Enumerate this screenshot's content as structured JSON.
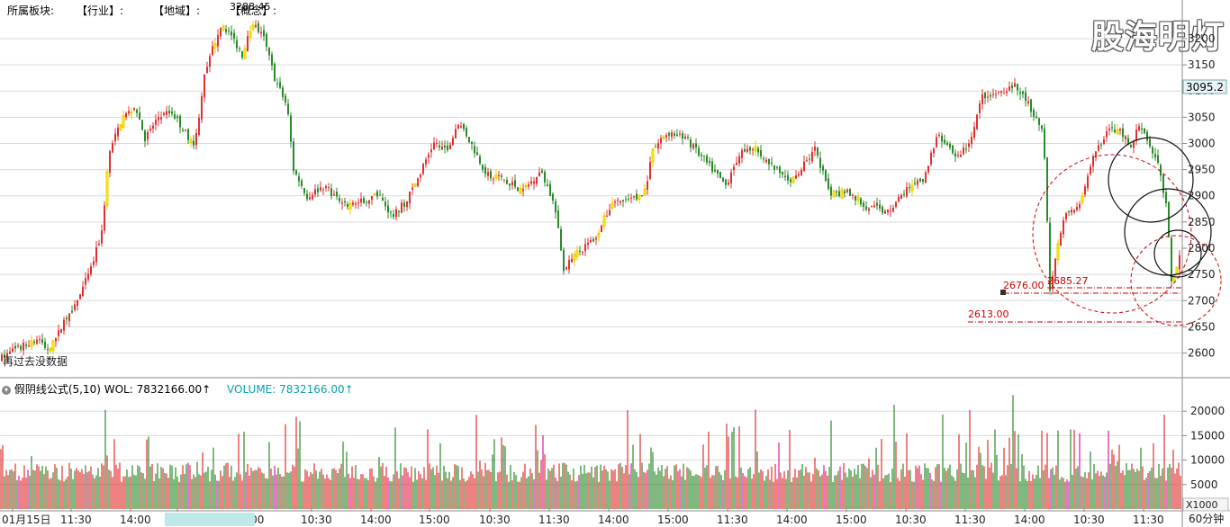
{
  "header": {
    "sector_label": "所属板块:",
    "industry_label": "【行业】:",
    "region_label": "【地域】:",
    "concept_label": "【概念】:",
    "concept_value": "3288.45"
  },
  "watermark": "股海明灯",
  "price_tag": "3095.2",
  "bottom_left_note": "再过去没数据",
  "chart_data": [
    {
      "type": "candlestick",
      "title": "",
      "ylabel": "",
      "ylim": [
        2570,
        3260
      ],
      "yticks": [
        2600,
        2650,
        2700,
        2750,
        2800,
        2850,
        2900,
        2950,
        3000,
        3050,
        3100,
        3150,
        3200
      ],
      "xticks": [
        "01月15日",
        "11:30",
        "14:00",
        "19/03/18/— 15:00",
        "10:30",
        "14:00",
        "15:00",
        "10:30",
        "11:30",
        "14:00",
        "15:00",
        "11:30",
        "14:00",
        "15:00",
        "10:30",
        "11:30",
        "14:00",
        "10:30",
        "11:30"
      ],
      "path_points": [
        [
          0,
          2590
        ],
        [
          20,
          2610
        ],
        [
          40,
          2625
        ],
        [
          55,
          2605
        ],
        [
          70,
          2660
        ],
        [
          85,
          2700
        ],
        [
          100,
          2760
        ],
        [
          112,
          2830
        ],
        [
          120,
          2980
        ],
        [
          135,
          3050
        ],
        [
          150,
          3070
        ],
        [
          160,
          3010
        ],
        [
          175,
          3050
        ],
        [
          190,
          3060
        ],
        [
          205,
          3020
        ],
        [
          215,
          2990
        ],
        [
          225,
          3120
        ],
        [
          235,
          3180
        ],
        [
          245,
          3230
        ],
        [
          258,
          3200
        ],
        [
          268,
          3170
        ],
        [
          280,
          3230
        ],
        [
          292,
          3200
        ],
        [
          305,
          3120
        ],
        [
          318,
          3070
        ],
        [
          325,
          2950
        ],
        [
          340,
          2900
        ],
        [
          360,
          2920
        ],
        [
          380,
          2880
        ],
        [
          400,
          2890
        ],
        [
          420,
          2900
        ],
        [
          435,
          2860
        ],
        [
          450,
          2890
        ],
        [
          465,
          2940
        ],
        [
          480,
          3000
        ],
        [
          495,
          2990
        ],
        [
          510,
          3040
        ],
        [
          525,
          2990
        ],
        [
          540,
          2940
        ],
        [
          560,
          2930
        ],
        [
          580,
          2910
        ],
        [
          600,
          2950
        ],
        [
          615,
          2880
        ],
        [
          625,
          2760
        ],
        [
          640,
          2790
        ],
        [
          660,
          2820
        ],
        [
          680,
          2890
        ],
        [
          700,
          2890
        ],
        [
          715,
          2910
        ],
        [
          725,
          2990
        ],
        [
          740,
          3020
        ],
        [
          755,
          3020
        ],
        [
          770,
          2990
        ],
        [
          790,
          2950
        ],
        [
          805,
          2920
        ],
        [
          820,
          2980
        ],
        [
          840,
          2990
        ],
        [
          860,
          2950
        ],
        [
          880,
          2930
        ],
        [
          905,
          2990
        ],
        [
          920,
          2900
        ],
        [
          940,
          2910
        ],
        [
          960,
          2880
        ],
        [
          985,
          2870
        ],
        [
          1005,
          2910
        ],
        [
          1025,
          2930
        ],
        [
          1040,
          3020
        ],
        [
          1060,
          2970
        ],
        [
          1075,
          3000
        ],
        [
          1090,
          3090
        ],
        [
          1110,
          3100
        ],
        [
          1125,
          3110
        ],
        [
          1140,
          3080
        ],
        [
          1158,
          3020
        ],
        [
          1165,
          2720
        ],
        [
          1180,
          2860
        ],
        [
          1200,
          2890
        ],
        [
          1215,
          2980
        ],
        [
          1230,
          3030
        ],
        [
          1245,
          3020
        ],
        [
          1255,
          2990
        ],
        [
          1265,
          3040
        ],
        [
          1275,
          3000
        ],
        [
          1285,
          2960
        ],
        [
          1295,
          2870
        ],
        [
          1300,
          2740
        ],
        [
          1310,
          2790
        ]
      ],
      "annotations": [
        {
          "text": "2676.00",
          "value": 2676.0
        },
        {
          "text": "2685.27",
          "value": 2685.27
        },
        {
          "text": "2613.00",
          "value": 2613.0
        }
      ]
    },
    {
      "type": "bar",
      "title": "",
      "ylim": [
        0,
        25000
      ],
      "yticks": [
        5000,
        10000,
        15000,
        20000
      ],
      "unit_label": "X1000",
      "indicator_label": "假阴线公式(5,10)",
      "wol_label": "WOL: 7832166.00↑",
      "volume_label": "VOLUME: 7832166.00↑",
      "period_label": "60分钟"
    }
  ],
  "colors": {
    "up": "#e03030",
    "down": "#2a8a2a",
    "highlight": "#ffff00",
    "annotation": "#cc0000",
    "grid": "#dadada",
    "volume_text": "#0aa0b0"
  }
}
